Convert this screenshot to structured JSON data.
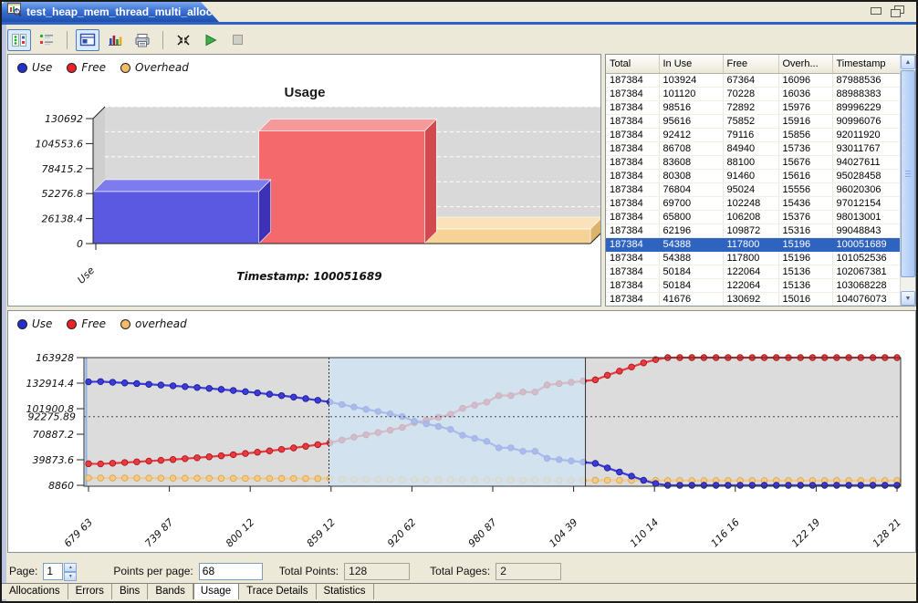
{
  "tab": {
    "title": "test_heap_mem_thread_multi_alloc",
    "close_glyph": "✕"
  },
  "window_buttons": {
    "minimize": "minimize",
    "restore": "restore"
  },
  "toolbar": {
    "icons": [
      "palette-settings-icon",
      "detail-layout-icon",
      "chart-view-toggle-icon",
      "bar-chart-icon",
      "printer-icon",
      "fit-to-window-icon",
      "play-icon",
      "stop-icon"
    ]
  },
  "colors": {
    "selection_blue": "#2f63c0",
    "tab_blue": "#2a62c8",
    "plot_gray": "#dcdcdc",
    "region_blue": "#cfe5f5",
    "use_blue": "#3434d0",
    "free_red": "#ea3a3f",
    "overhead_orange": "#f5ca86"
  },
  "table": {
    "columns": [
      "Total",
      "In Use",
      "Free",
      "Overh...",
      "Timestamp"
    ],
    "selected_row": 12,
    "rows": [
      [
        187384,
        103924,
        67364,
        16096,
        87988536
      ],
      [
        187384,
        101120,
        70228,
        16036,
        88988383
      ],
      [
        187384,
        98516,
        72892,
        15976,
        89996229
      ],
      [
        187384,
        95616,
        75852,
        15916,
        90996076
      ],
      [
        187384,
        92412,
        79116,
        15856,
        92011920
      ],
      [
        187384,
        86708,
        84940,
        15736,
        93011767
      ],
      [
        187384,
        83608,
        88100,
        15676,
        94027611
      ],
      [
        187384,
        80308,
        91460,
        15616,
        95028458
      ],
      [
        187384,
        76804,
        95024,
        15556,
        96020306
      ],
      [
        187384,
        69700,
        102248,
        15436,
        97012154
      ],
      [
        187384,
        65800,
        106208,
        15376,
        98013001
      ],
      [
        187384,
        62196,
        109872,
        15316,
        99048843
      ],
      [
        187384,
        54388,
        117800,
        15196,
        100051689
      ],
      [
        187384,
        54388,
        117800,
        15196,
        101052536
      ],
      [
        187384,
        50184,
        122064,
        15136,
        102067381
      ],
      [
        187384,
        50184,
        122064,
        15136,
        103068228
      ],
      [
        187384,
        41676,
        130692,
        15016,
        104076073
      ]
    ]
  },
  "controls": {
    "page_label": "Page:",
    "page_value": "1",
    "pts_label": "Points per page:",
    "pts_value": "68",
    "total_points_label": "Total Points:",
    "total_points_value": "128",
    "total_pages_label": "Total Pages:",
    "total_pages_value": "2"
  },
  "bottom_tabs": {
    "items": [
      "Allocations",
      "Errors",
      "Bins",
      "Bands",
      "Usage",
      "Trace Details",
      "Statistics"
    ],
    "active": "Usage"
  },
  "chart_data": [
    {
      "type": "bar",
      "title": "Usage",
      "footer": "Timestamp: 100051689",
      "xtick_label": "Use",
      "ylim": [
        0,
        130692
      ],
      "yticks": [
        0,
        26138.4,
        52276.8,
        78415.2,
        104553.6,
        130692
      ],
      "legend": [
        {
          "label": "Use",
          "color": "#2230cc"
        },
        {
          "label": "Free",
          "color": "#ee2127"
        },
        {
          "label": "Overhead",
          "color": "#f2bd66"
        }
      ],
      "bars": [
        {
          "name": "Use",
          "value": 54388,
          "front": "#5b59e2",
          "top": "#7d7bee",
          "side": "#3d32b6"
        },
        {
          "name": "Free",
          "value": 117800,
          "front": "#f4696c",
          "top": "#f7989a",
          "side": "#d14a50"
        },
        {
          "name": "Overhead",
          "value": 15196,
          "front": "#f6d297",
          "top": "#fae3ba",
          "side": "#ddb26a"
        }
      ]
    },
    {
      "type": "line",
      "ylim": [
        8860,
        163928
      ],
      "yticks": [
        163928,
        132914.4,
        101900.8,
        70887.2,
        39873.6,
        8860
      ],
      "marker_value": 92275.89,
      "selection": {
        "start_frac": 0.3,
        "end_frac": 0.614
      },
      "x_labels": [
        "679 63",
        "739 87",
        "800 12",
        "859 12",
        "920 62",
        "980 87",
        "104 39",
        "110 14",
        "116 16",
        "122 19",
        "128 21"
      ],
      "legend": [
        {
          "label": "Use",
          "color": "#2230cc"
        },
        {
          "label": "Free",
          "color": "#ee2127"
        },
        {
          "label": "overhead",
          "color": "#f2bd66"
        }
      ],
      "series": [
        {
          "name": "overhead",
          "color": "#f5ca86",
          "stroke": "#d9a345",
          "values": [
            17800,
            17760,
            17720,
            17680,
            17640,
            17600,
            17560,
            17520,
            17480,
            17440,
            17400,
            17360,
            17320,
            17280,
            17240,
            17200,
            17160,
            17120,
            17080,
            17040,
            17000,
            16500,
            16096,
            16036,
            15976,
            15916,
            15856,
            15736,
            15676,
            15616,
            15556,
            15436,
            15376,
            15316,
            15196,
            15196,
            15136,
            15136,
            15016,
            15000,
            14980,
            14960,
            14940,
            14920,
            14900,
            14880,
            14860,
            14840,
            14596,
            14596,
            14596,
            14596,
            14596,
            14596,
            14596,
            14596,
            14596,
            14596,
            14596,
            14596,
            14596,
            14596,
            14596,
            14596,
            14596,
            14596,
            14596,
            14596
          ]
        },
        {
          "name": "Free",
          "color": "#ea3a3f",
          "stroke": "#a01418",
          "values": [
            35084,
            34824,
            35664,
            36504,
            37344,
            38284,
            39224,
            40164,
            41204,
            42344,
            43484,
            44724,
            46064,
            47504,
            49044,
            50684,
            52424,
            54264,
            56204,
            58244,
            60384,
            63884,
            67364,
            70228,
            72892,
            75852,
            79116,
            84940,
            88100,
            91460,
            95024,
            102248,
            106208,
            109872,
            117800,
            117800,
            122064,
            122064,
            130692,
            132384,
            133904,
            135424,
            136944,
            142464,
            147484,
            152504,
            157524,
            161544,
            163928,
            163928,
            163928,
            163928,
            163928,
            163928,
            163928,
            163928,
            163928,
            163928,
            163928,
            163928,
            163928,
            163928,
            163928,
            163928,
            163928,
            163928,
            163928,
            163928
          ]
        },
        {
          "name": "Use",
          "color": "#3b3bda",
          "stroke": "#16168c",
          "values": [
            134500,
            134800,
            134000,
            133200,
            132400,
            131500,
            130600,
            129700,
            128700,
            127600,
            126500,
            125300,
            124000,
            122600,
            121100,
            119500,
            117800,
            116000,
            114100,
            112100,
            110000,
            107000,
            103924,
            101120,
            98516,
            95616,
            92412,
            86708,
            83608,
            80308,
            76804,
            69700,
            65800,
            62196,
            54388,
            54388,
            50184,
            50184,
            41676,
            40000,
            38500,
            37000,
            35500,
            30000,
            25000,
            20000,
            15000,
            11000,
            8860,
            8860,
            8860,
            8860,
            8860,
            8860,
            8860,
            8860,
            8860,
            8860,
            8860,
            8860,
            8860,
            8860,
            8860,
            8860,
            8860,
            8860,
            8860,
            8860
          ]
        }
      ]
    }
  ]
}
